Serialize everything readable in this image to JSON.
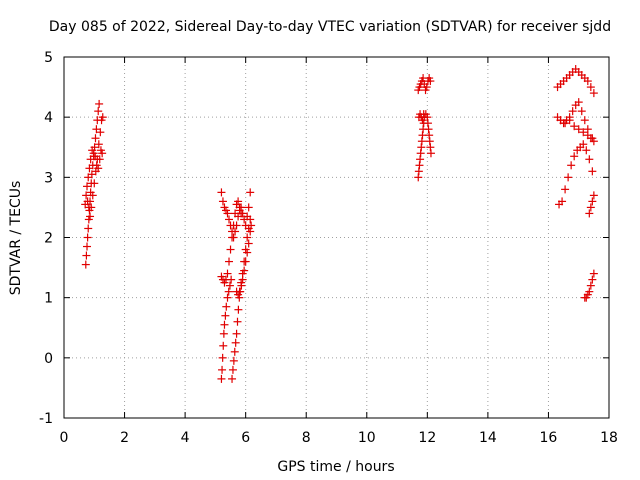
{
  "chart_data": {
    "type": "scatter",
    "title": "Day 085 of 2022, Sidereal Day-to-day VTEC variation (SDTVAR) for receiver sjdd",
    "xlabel": "GPS time / hours",
    "ylabel": "SDTVAR / TECUs",
    "xlim": [
      0,
      18
    ],
    "ylim": [
      -1,
      5
    ],
    "xticks": [
      "0",
      "2",
      "4",
      "6",
      "8",
      "10",
      "12",
      "14",
      "16",
      "18"
    ],
    "yticks": [
      "-1",
      "0",
      "1",
      "2",
      "3",
      "4",
      "5"
    ],
    "grid": true,
    "marker": "+",
    "color": "#e00000",
    "series": [
      {
        "name": "SDTVAR",
        "points": [
          [
            0.72,
            1.55
          ],
          [
            0.74,
            1.7
          ],
          [
            0.76,
            1.85
          ],
          [
            0.78,
            2.0
          ],
          [
            0.8,
            2.15
          ],
          [
            0.82,
            2.3
          ],
          [
            0.84,
            2.45
          ],
          [
            0.86,
            2.6
          ],
          [
            0.88,
            2.75
          ],
          [
            0.9,
            2.9
          ],
          [
            0.92,
            3.05
          ],
          [
            0.95,
            3.2
          ],
          [
            0.98,
            3.35
          ],
          [
            1.01,
            3.5
          ],
          [
            1.04,
            3.65
          ],
          [
            1.07,
            3.8
          ],
          [
            1.1,
            3.95
          ],
          [
            1.13,
            4.1
          ],
          [
            1.16,
            4.22
          ],
          [
            0.7,
            2.55
          ],
          [
            0.73,
            2.7
          ],
          [
            0.76,
            2.85
          ],
          [
            0.8,
            3.0
          ],
          [
            0.84,
            3.15
          ],
          [
            0.88,
            3.3
          ],
          [
            0.93,
            3.45
          ],
          [
            0.98,
            3.4
          ],
          [
            1.03,
            3.35
          ],
          [
            1.08,
            3.2
          ],
          [
            1.13,
            3.15
          ],
          [
            1.18,
            3.3
          ],
          [
            1.22,
            3.45
          ],
          [
            1.26,
            3.4
          ],
          [
            0.78,
            2.6
          ],
          [
            0.82,
            2.5
          ],
          [
            0.86,
            2.35
          ],
          [
            0.9,
            2.5
          ],
          [
            0.95,
            2.7
          ],
          [
            1.0,
            2.9
          ],
          [
            1.05,
            3.1
          ],
          [
            1.1,
            3.3
          ],
          [
            1.15,
            3.55
          ],
          [
            1.2,
            3.75
          ],
          [
            1.24,
            3.95
          ],
          [
            1.28,
            4.0
          ],
          [
            5.2,
            2.75
          ],
          [
            5.25,
            2.6
          ],
          [
            5.3,
            2.5
          ],
          [
            5.35,
            2.45
          ],
          [
            5.4,
            2.4
          ],
          [
            5.45,
            2.3
          ],
          [
            5.5,
            2.2
          ],
          [
            5.55,
            2.1
          ],
          [
            5.6,
            2.0
          ],
          [
            5.65,
            2.1
          ],
          [
            5.7,
            2.2
          ],
          [
            5.75,
            2.35
          ],
          [
            5.8,
            2.45
          ],
          [
            5.85,
            2.5
          ],
          [
            5.9,
            2.4
          ],
          [
            5.95,
            2.3
          ],
          [
            6.0,
            2.2
          ],
          [
            6.05,
            2.35
          ],
          [
            6.1,
            2.5
          ],
          [
            6.15,
            2.75
          ],
          [
            5.2,
            1.35
          ],
          [
            5.25,
            1.3
          ],
          [
            5.3,
            1.25
          ],
          [
            5.35,
            1.3
          ],
          [
            5.4,
            1.4
          ],
          [
            5.45,
            1.6
          ],
          [
            5.5,
            1.8
          ],
          [
            5.55,
            2.0
          ],
          [
            5.6,
            2.2
          ],
          [
            5.65,
            2.4
          ],
          [
            5.7,
            2.55
          ],
          [
            5.75,
            2.6
          ],
          [
            5.8,
            2.5
          ],
          [
            5.85,
            2.4
          ],
          [
            5.2,
            -0.35
          ],
          [
            5.22,
            -0.2
          ],
          [
            5.24,
            0.0
          ],
          [
            5.26,
            0.2
          ],
          [
            5.28,
            0.4
          ],
          [
            5.3,
            0.55
          ],
          [
            5.33,
            0.7
          ],
          [
            5.36,
            0.85
          ],
          [
            5.4,
            1.0
          ],
          [
            5.44,
            1.1
          ],
          [
            5.48,
            1.2
          ],
          [
            5.52,
            1.3
          ],
          [
            5.55,
            -0.35
          ],
          [
            5.58,
            -0.2
          ],
          [
            5.61,
            -0.05
          ],
          [
            5.64,
            0.1
          ],
          [
            5.67,
            0.25
          ],
          [
            5.7,
            0.4
          ],
          [
            5.73,
            0.6
          ],
          [
            5.76,
            0.8
          ],
          [
            5.79,
            1.0
          ],
          [
            5.82,
            1.1
          ],
          [
            5.86,
            1.2
          ],
          [
            5.9,
            1.3
          ],
          [
            5.95,
            1.45
          ],
          [
            6.0,
            1.6
          ],
          [
            6.05,
            1.75
          ],
          [
            6.1,
            1.9
          ],
          [
            6.15,
            2.1
          ],
          [
            6.18,
            2.2
          ],
          [
            5.7,
            1.1
          ],
          [
            5.75,
            1.05
          ],
          [
            5.8,
            1.1
          ],
          [
            5.85,
            1.25
          ],
          [
            5.9,
            1.4
          ],
          [
            5.95,
            1.6
          ],
          [
            6.0,
            1.8
          ],
          [
            6.05,
            2.0
          ],
          [
            6.1,
            2.15
          ],
          [
            6.15,
            2.3
          ],
          [
            11.7,
            3.0
          ],
          [
            11.72,
            3.1
          ],
          [
            11.74,
            3.2
          ],
          [
            11.76,
            3.3
          ],
          [
            11.78,
            3.4
          ],
          [
            11.8,
            3.5
          ],
          [
            11.82,
            3.6
          ],
          [
            11.84,
            3.7
          ],
          [
            11.86,
            3.8
          ],
          [
            11.88,
            3.9
          ],
          [
            11.9,
            4.0
          ],
          [
            11.95,
            4.05
          ],
          [
            12.0,
            4.0
          ],
          [
            12.02,
            3.9
          ],
          [
            12.04,
            3.8
          ],
          [
            12.06,
            3.7
          ],
          [
            12.08,
            3.6
          ],
          [
            12.1,
            3.5
          ],
          [
            12.12,
            3.4
          ],
          [
            11.7,
            4.45
          ],
          [
            11.74,
            4.5
          ],
          [
            11.78,
            4.55
          ],
          [
            11.82,
            4.6
          ],
          [
            11.86,
            4.65
          ],
          [
            11.9,
            4.55
          ],
          [
            11.94,
            4.45
          ],
          [
            11.98,
            4.5
          ],
          [
            12.02,
            4.6
          ],
          [
            12.06,
            4.65
          ],
          [
            12.1,
            4.6
          ],
          [
            11.72,
            4.0
          ],
          [
            11.76,
            4.05
          ],
          [
            11.8,
            4.0
          ],
          [
            11.84,
            3.95
          ],
          [
            11.88,
            4.05
          ],
          [
            16.3,
            4.5
          ],
          [
            16.4,
            4.55
          ],
          [
            16.5,
            4.6
          ],
          [
            16.6,
            4.65
          ],
          [
            16.7,
            4.7
          ],
          [
            16.8,
            4.75
          ],
          [
            16.9,
            4.8
          ],
          [
            17.0,
            4.75
          ],
          [
            17.1,
            4.7
          ],
          [
            17.2,
            4.65
          ],
          [
            17.3,
            4.6
          ],
          [
            17.4,
            4.5
          ],
          [
            17.5,
            4.4
          ],
          [
            16.3,
            4.0
          ],
          [
            16.4,
            3.95
          ],
          [
            16.5,
            3.9
          ],
          [
            16.6,
            3.95
          ],
          [
            16.7,
            4.0
          ],
          [
            16.8,
            4.1
          ],
          [
            16.9,
            4.2
          ],
          [
            17.0,
            4.25
          ],
          [
            17.1,
            4.1
          ],
          [
            17.2,
            3.95
          ],
          [
            17.3,
            3.8
          ],
          [
            17.4,
            3.65
          ],
          [
            17.5,
            3.6
          ],
          [
            16.35,
            2.55
          ],
          [
            16.45,
            2.6
          ],
          [
            16.55,
            2.8
          ],
          [
            16.65,
            3.0
          ],
          [
            16.75,
            3.2
          ],
          [
            16.85,
            3.35
          ],
          [
            16.95,
            3.45
          ],
          [
            17.05,
            3.5
          ],
          [
            17.15,
            3.55
          ],
          [
            17.25,
            3.45
          ],
          [
            17.35,
            3.3
          ],
          [
            17.45,
            3.1
          ],
          [
            16.4,
            3.95
          ],
          [
            16.55,
            3.9
          ],
          [
            16.7,
            3.95
          ],
          [
            16.85,
            3.85
          ],
          [
            17.0,
            3.8
          ],
          [
            17.15,
            3.75
          ],
          [
            17.3,
            3.7
          ],
          [
            17.45,
            3.65
          ],
          [
            17.35,
            2.4
          ],
          [
            17.4,
            2.5
          ],
          [
            17.45,
            2.6
          ],
          [
            17.5,
            2.7
          ],
          [
            17.2,
            1.0
          ],
          [
            17.25,
            1.0
          ],
          [
            17.3,
            1.05
          ],
          [
            17.35,
            1.1
          ],
          [
            17.4,
            1.2
          ],
          [
            17.45,
            1.3
          ],
          [
            17.5,
            1.4
          ]
        ]
      }
    ]
  }
}
